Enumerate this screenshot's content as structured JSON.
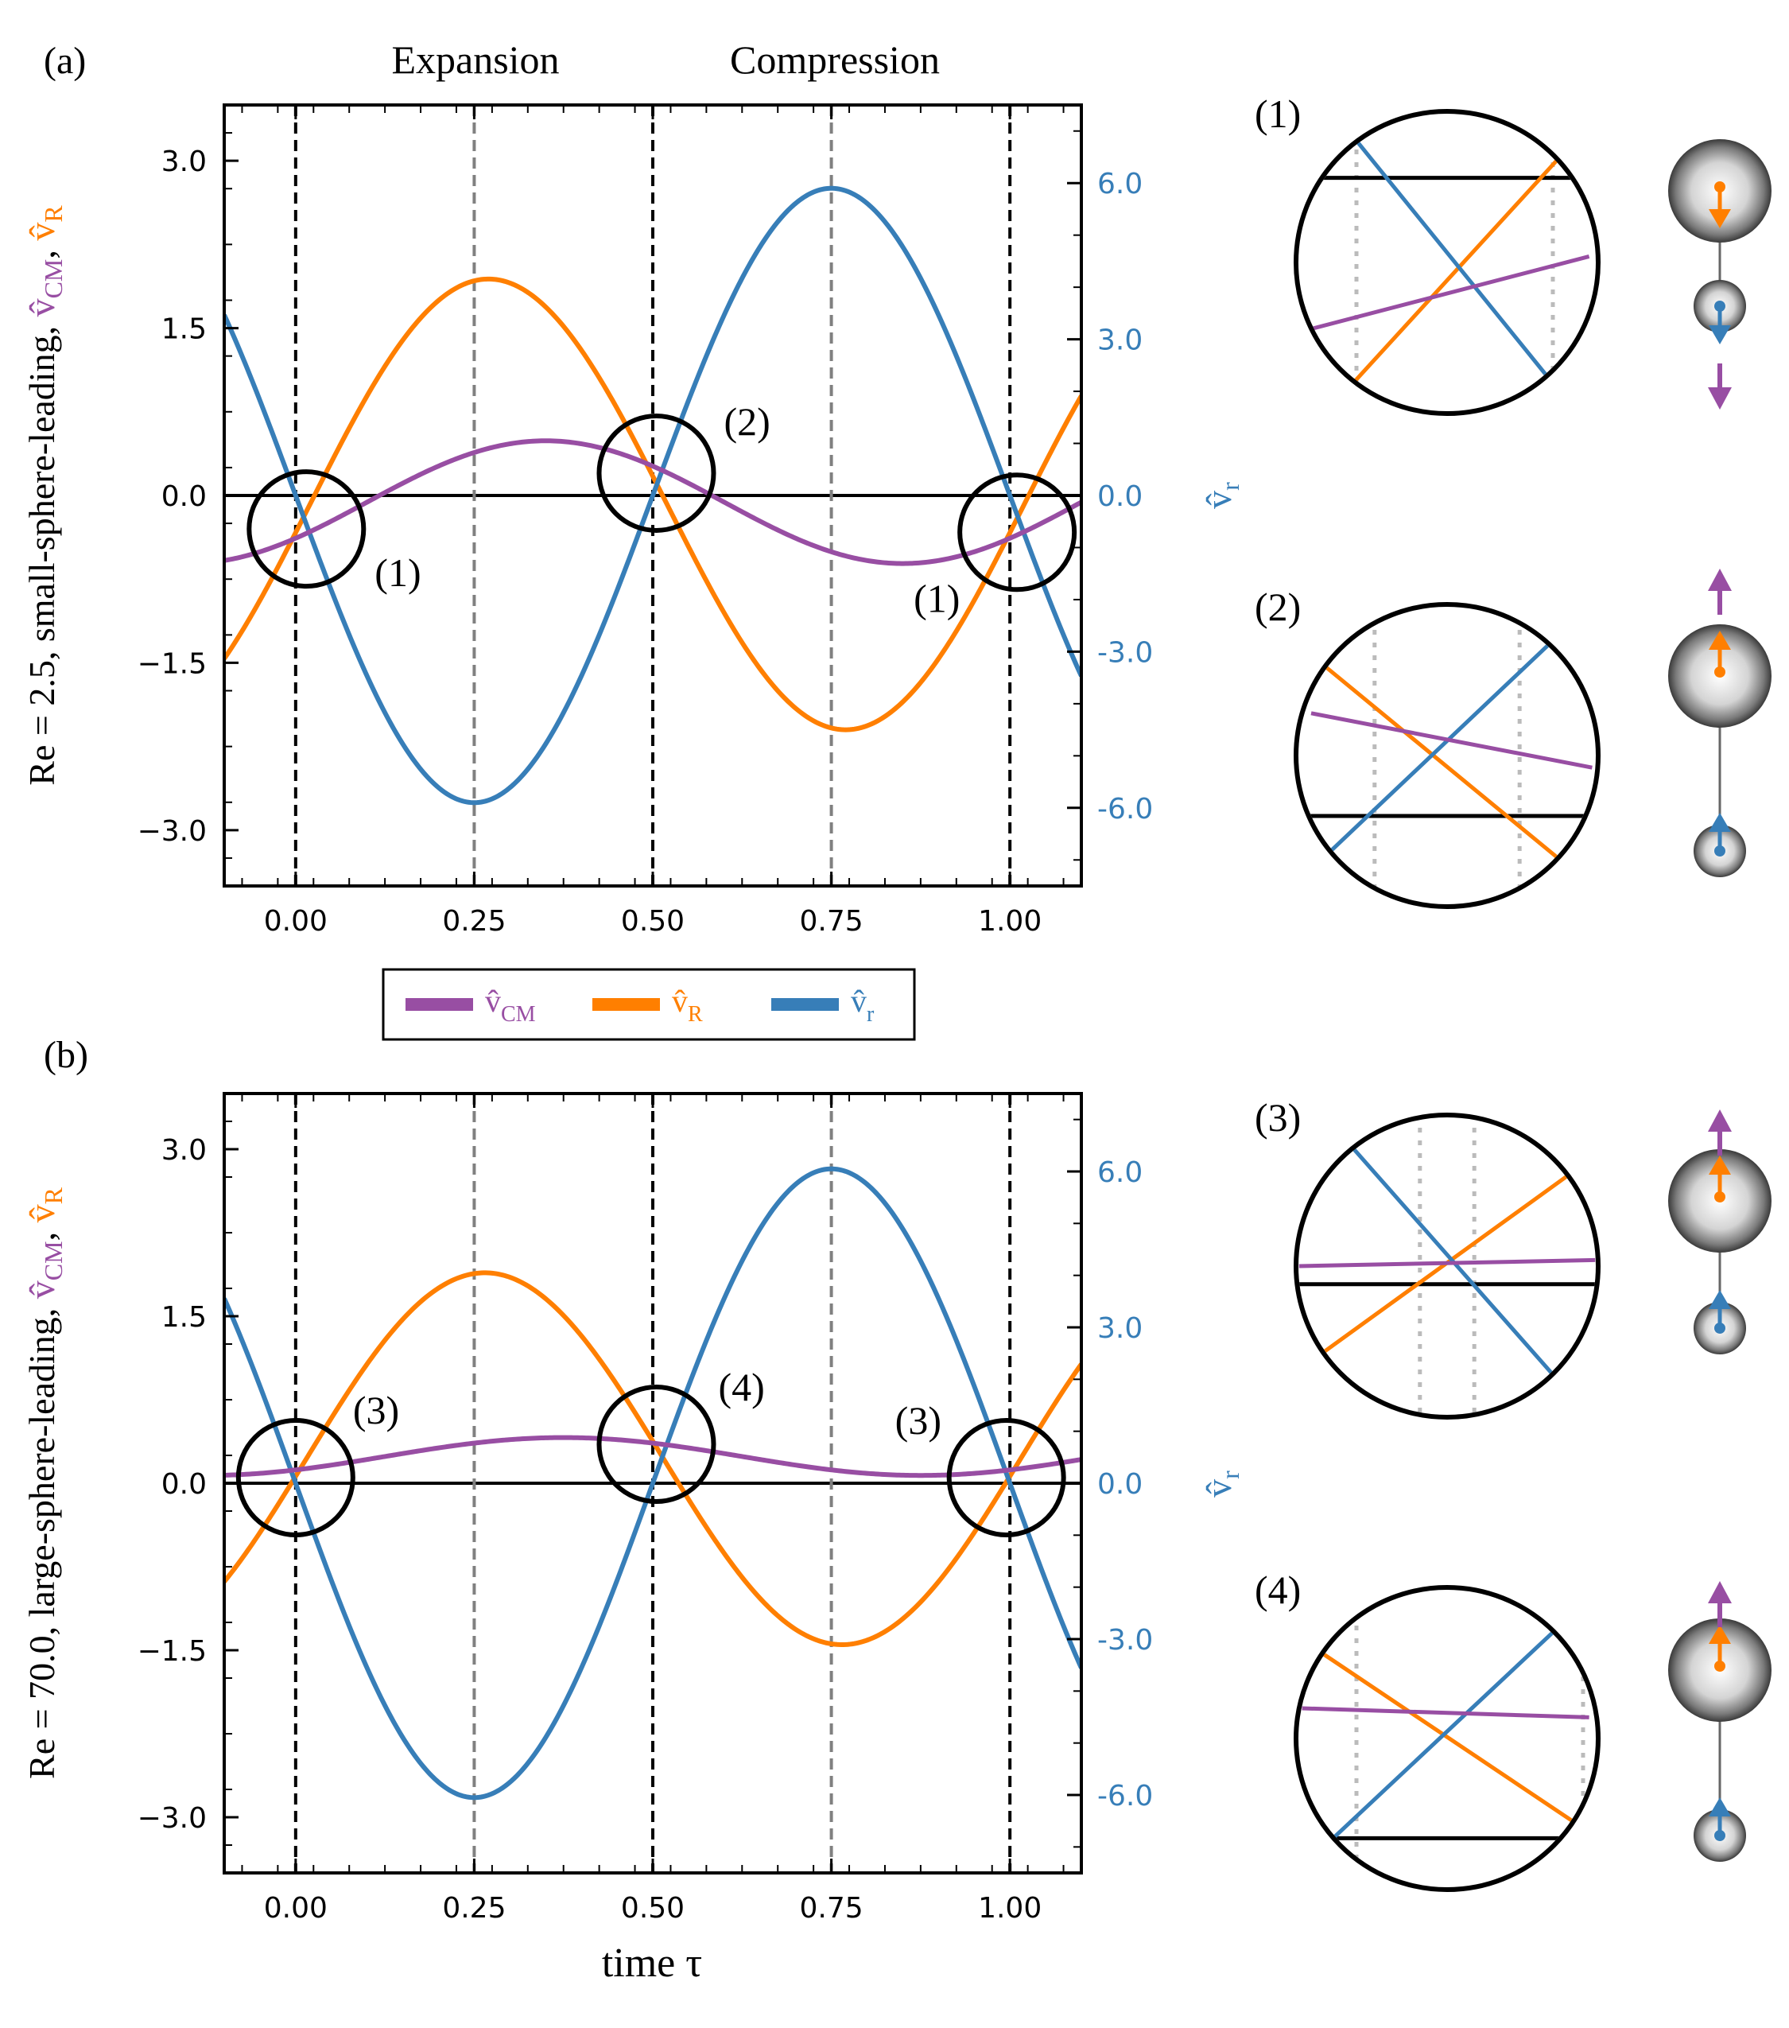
{
  "figure": {
    "phase_labels": [
      "Expansion",
      "Compression"
    ],
    "xlabel": "time τ",
    "right_axis_symbol": "v̂",
    "right_axis_sub": "r",
    "left_axis_cm": "v̂",
    "left_axis_cm_sub": "CM",
    "left_axis_R": "v̂",
    "left_axis_R_sub": "R",
    "legend": [
      {
        "sym": "v̂",
        "sub": "CM",
        "color": "#984ea3"
      },
      {
        "sym": "v̂",
        "sub": "R",
        "color": "#ff7f00"
      },
      {
        "sym": "v̂",
        "sub": "r",
        "color": "#377eb8"
      }
    ],
    "colors": {
      "cm": "#984ea3",
      "R": "#ff7f00",
      "r": "#377eb8",
      "gray": "#808080",
      "zoom_dotted": "#bbbbbb"
    }
  },
  "chart_data": [
    {
      "type": "line",
      "panel": "(a)",
      "ylabel_prefix": "Re = 2.5, small-sphere-leading",
      "xlim": [
        -0.1,
        1.1
      ],
      "ylim_left": [
        -3.5,
        3.5
      ],
      "ylim_right": [
        -7.5,
        7.5
      ],
      "x_ticks": [
        "0.00",
        "0.25",
        "0.50",
        "0.75",
        "1.00"
      ],
      "x_tick_values": [
        0,
        0.25,
        0.5,
        0.75,
        1.0
      ],
      "y_ticks_left": [
        "3.0",
        "1.5",
        "0.0",
        "−1.5",
        "−3.0"
      ],
      "y_tick_values_left": [
        3.0,
        1.5,
        0.0,
        -1.5,
        -3.0
      ],
      "y_ticks_right": [
        "6.0",
        "3.0",
        "0.0",
        "-3.0",
        "-6.0"
      ],
      "y_tick_values_right": [
        6.0,
        3.0,
        0.0,
        -3.0,
        -6.0
      ],
      "vlines_black": [
        0,
        0.5,
        1.0
      ],
      "vlines_gray": [
        0.25,
        0.75
      ],
      "params": {
        "cm": {
          "offset": -0.06,
          "amp": 0.55,
          "phase": 0.35
        },
        "R": {
          "offset": -0.08,
          "amp": 2.02,
          "phase": 0.27
        },
        "r": {
          "amp": 5.9,
          "phase": 0.25
        }
      },
      "series": [
        {
          "name": "v̂CM",
          "axis": "left",
          "x": [
            -0.1,
            0.0,
            0.1,
            0.25,
            0.35,
            0.5,
            0.6,
            0.75,
            0.85,
            1.0,
            1.1
          ],
          "values": [
            -0.58,
            -0.42,
            -0.05,
            0.36,
            0.49,
            0.18,
            -0.29,
            -0.55,
            -0.61,
            -0.42,
            -0.05
          ]
        },
        {
          "name": "v̂R",
          "axis": "left",
          "x": [
            -0.1,
            0.0,
            0.1,
            0.27,
            0.4,
            0.5,
            0.6,
            0.77,
            0.9,
            1.0,
            1.1
          ],
          "values": [
            -1.5,
            -0.4,
            0.86,
            1.94,
            1.21,
            0.24,
            -0.96,
            -2.1,
            -1.34,
            -0.4,
            0.8
          ]
        },
        {
          "name": "v̂r",
          "axis": "right",
          "x": [
            -0.1,
            0.0,
            0.1,
            0.25,
            0.4,
            0.5,
            0.6,
            0.75,
            0.9,
            1.0,
            1.1
          ],
          "values": [
            3.2,
            0.0,
            -3.5,
            -5.9,
            -3.5,
            0.0,
            3.5,
            5.7,
            3.5,
            0.0,
            -3.6
          ]
        }
      ],
      "zoom_circles": [
        {
          "label": "(1)",
          "x": 0.015,
          "y": -0.3
        },
        {
          "label": "(2)",
          "x": 0.505,
          "y": 0.2
        },
        {
          "label": "(1)",
          "x": 1.01,
          "y": -0.33
        }
      ]
    },
    {
      "type": "line",
      "panel": "(b)",
      "ylabel_prefix": "Re = 70.0, large-sphere-leading",
      "xlim": [
        -0.1,
        1.1
      ],
      "ylim_left": [
        -3.5,
        3.5
      ],
      "ylim_right": [
        -7.5,
        7.5
      ],
      "x_ticks": [
        "0.00",
        "0.25",
        "0.50",
        "0.75",
        "1.00"
      ],
      "x_tick_values": [
        0,
        0.25,
        0.5,
        0.75,
        1.0
      ],
      "y_ticks_left": [
        "3.0",
        "1.5",
        "0.0",
        "−1.5",
        "−3.0"
      ],
      "y_tick_values_left": [
        3.0,
        1.5,
        0.0,
        -1.5,
        -3.0
      ],
      "y_ticks_right": [
        "6.0",
        "3.0",
        "0.0",
        "-3.0",
        "-6.0"
      ],
      "y_tick_values_right": [
        6.0,
        3.0,
        0.0,
        -3.0,
        -6.0
      ],
      "vlines_black": [
        0,
        0.5,
        1.0
      ],
      "vlines_gray": [
        0.25,
        0.75
      ],
      "params": {
        "cm": {
          "offset": 0.24,
          "amp": 0.17,
          "phase": 0.375
        },
        "R": {
          "offset": 0.22,
          "amp": 1.67,
          "phase": 0.265
        },
        "r": {
          "amp": 6.05,
          "phase": 0.25
        }
      },
      "series": [
        {
          "name": "v̂CM",
          "axis": "left",
          "x": [
            -0.1,
            0.0,
            0.1,
            0.25,
            0.375,
            0.5,
            0.6,
            0.75,
            0.875,
            1.0,
            1.1
          ],
          "values": [
            0.08,
            0.1,
            0.17,
            0.34,
            0.41,
            0.33,
            0.22,
            0.11,
            0.07,
            0.1,
            0.15
          ]
        },
        {
          "name": "v̂R",
          "axis": "left",
          "x": [
            -0.1,
            0.0,
            0.1,
            0.265,
            0.4,
            0.5,
            0.6,
            0.765,
            0.9,
            1.0,
            1.1
          ],
          "values": [
            -0.83,
            0.08,
            1.05,
            1.89,
            1.25,
            0.35,
            -0.6,
            -1.45,
            -0.85,
            0.08,
            1.07
          ]
        },
        {
          "name": "v̂r",
          "axis": "right",
          "x": [
            -0.1,
            0.0,
            0.1,
            0.25,
            0.4,
            0.5,
            0.6,
            0.75,
            0.9,
            1.0,
            1.1
          ],
          "values": [
            3.6,
            0.0,
            -3.55,
            -5.8,
            -3.55,
            0.0,
            3.55,
            6.3,
            3.55,
            0.0,
            -3.6
          ]
        }
      ],
      "zoom_circles": [
        {
          "label": "(3)",
          "x": 0.0,
          "y": 0.05
        },
        {
          "label": "(4)",
          "x": 0.505,
          "y": 0.35
        },
        {
          "label": "(3)",
          "x": 0.995,
          "y": 0.05
        }
      ]
    }
  ],
  "insets": [
    {
      "label": "(1)",
      "cm": [
        [
          0.05,
          0.72
        ],
        [
          0.97,
          0.48
        ]
      ],
      "R": [
        [
          0.17,
          0.92
        ],
        [
          0.92,
          0.1
        ]
      ],
      "r": [
        [
          0.17,
          0.06
        ],
        [
          0.85,
          0.9
        ]
      ],
      "black_y": 0.22,
      "dotted_x": [
        0.2,
        0.85
      ],
      "arrows": {
        "big": "down",
        "small": "down",
        "cm": "down"
      }
    },
    {
      "label": "(2)",
      "cm": [
        [
          0.05,
          0.36
        ],
        [
          0.98,
          0.54
        ]
      ],
      "R": [
        [
          0.09,
          0.2
        ],
        [
          0.88,
          0.85
        ]
      ],
      "r": [
        [
          0.1,
          0.83
        ],
        [
          0.85,
          0.12
        ]
      ],
      "black_y": 0.7,
      "dotted_x": [
        0.26,
        0.74
      ],
      "arrows": {
        "big": "up",
        "small": "up",
        "cm": "up"
      }
    },
    {
      "label": "(3)",
      "cm": [
        [
          0.01,
          0.5
        ],
        [
          0.99,
          0.48
        ]
      ],
      "R": [
        [
          0.07,
          0.8
        ],
        [
          0.9,
          0.2
        ]
      ],
      "r": [
        [
          0.18,
          0.1
        ],
        [
          0.86,
          0.87
        ]
      ],
      "black_y": 0.56,
      "dotted_x": [
        0.41,
        0.59
      ],
      "arrows": {
        "big": "up",
        "small": "up",
        "cm": "up"
      }
    },
    {
      "label": "(4)",
      "cm": [
        [
          0.02,
          0.4
        ],
        [
          0.97,
          0.43
        ]
      ],
      "R": [
        [
          0.06,
          0.2
        ],
        [
          0.94,
          0.79
        ]
      ],
      "r": [
        [
          0.08,
          0.87
        ],
        [
          0.87,
          0.13
        ]
      ],
      "black_y": 0.83,
      "dotted_x": [
        0.2,
        0.95
      ],
      "arrows": {
        "big": "up",
        "small": "up",
        "cm": "up"
      }
    }
  ]
}
